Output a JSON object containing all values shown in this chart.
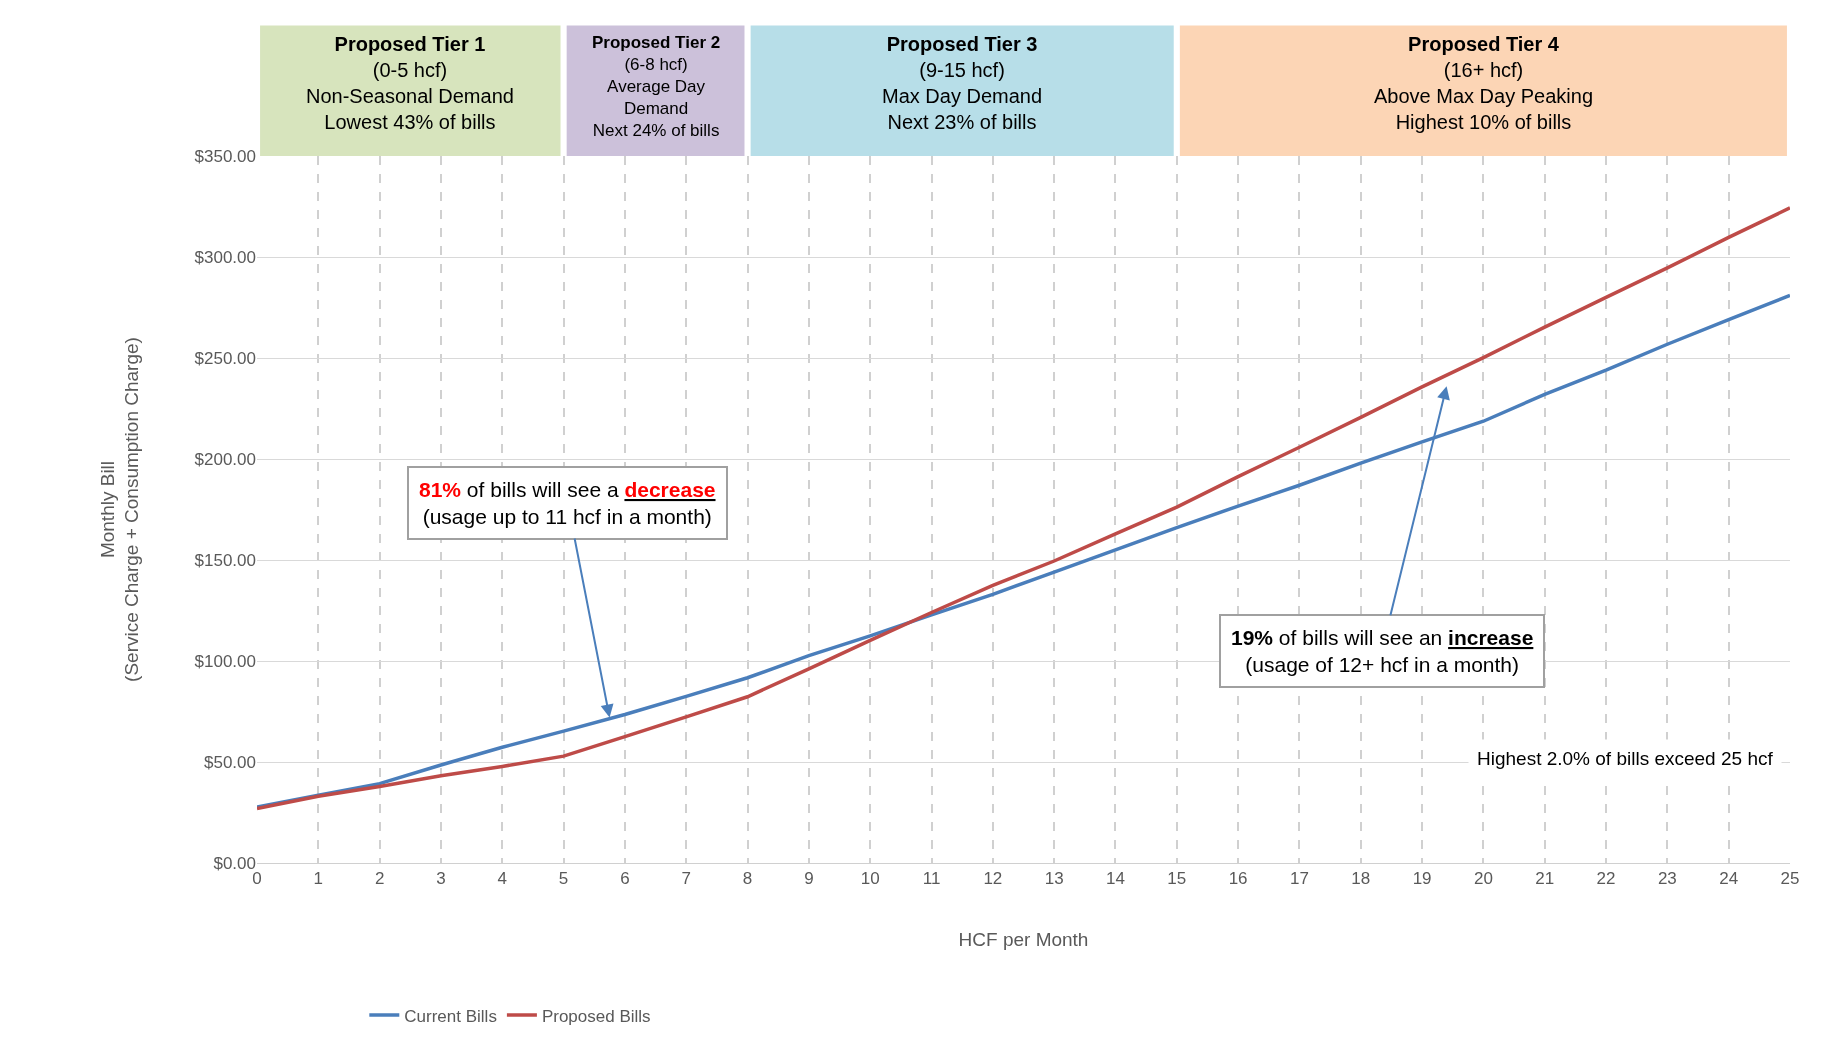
{
  "chart_data": {
    "type": "line",
    "xlabel": "HCF per Month",
    "ylabel": "Monthly Bill\n(Service Charge + Consumption Charge)",
    "x": [
      0,
      1,
      2,
      3,
      4,
      5,
      6,
      7,
      8,
      9,
      10,
      11,
      12,
      13,
      14,
      15,
      16,
      17,
      18,
      19,
      20,
      21,
      22,
      23,
      24,
      25
    ],
    "series": [
      {
        "name": "Current Bills",
        "color": "#4a7ebb",
        "values": [
          27.7,
          33.5,
          39.3,
          48.5,
          57.3,
          65.3,
          73.5,
          82.5,
          91.7,
          102.7,
          112.4,
          122.8,
          133,
          144,
          155,
          166,
          176.7,
          187,
          198,
          208.5,
          218.7,
          232,
          244,
          256.8,
          269,
          281
        ]
      },
      {
        "name": "Proposed Bills",
        "color": "#be4b48",
        "values": [
          27,
          33,
          37.9,
          43.2,
          47.8,
          52.9,
          62.6,
          72.3,
          82.3,
          96.1,
          110.2,
          124,
          137.4,
          149.5,
          162.9,
          176.2,
          191.3,
          205.8,
          220.6,
          235.7,
          250.2,
          265.3,
          280,
          294.6,
          309.7,
          324.3
        ]
      }
    ],
    "xlim": [
      0,
      25
    ],
    "xticks": [
      0,
      1,
      2,
      3,
      4,
      5,
      6,
      7,
      8,
      9,
      10,
      11,
      12,
      13,
      14,
      15,
      16,
      17,
      18,
      19,
      20,
      21,
      22,
      23,
      24,
      25
    ],
    "ylim": [
      0,
      350
    ],
    "yticks": [
      {
        "value": 0,
        "label": "$0.00"
      },
      {
        "value": 50,
        "label": "$50.00"
      },
      {
        "value": 100,
        "label": "$100.00"
      },
      {
        "value": 150,
        "label": "$150.00"
      },
      {
        "value": 200,
        "label": "$200.00"
      },
      {
        "value": 250,
        "label": "$250.00"
      },
      {
        "value": 300,
        "label": "$300.00"
      },
      {
        "value": 350,
        "label": "$350.00"
      }
    ],
    "annotations": [
      "Proposed Tier 1\n(0-5 hcf)\nNon-Seasonal Demand\nLowest 43% of bills",
      "Proposed Tier 2\n(6-8 hcf)\nAverage Day\nDemand\nNext 24% of bills",
      "Proposed Tier 3\n(9-15 hcf)\nMax Day Demand\nNext 23% of bills",
      "Proposed Tier 4\n(16+ hcf)\nAbove Max Day Peaking\nHighest 10% of bills",
      {
        "text": "81% of bills will see a decrease\n(usage up to 11 hcf in a month)",
        "x": 5.75,
        "y": 72
      },
      "19% of bills will see an increase\n(usage of 12+ hcf in a month)",
      "Highest 2.0% of bills exceed 25 hcf"
    ],
    "grid": true,
    "legend": "bottom left",
    "marker": "none",
    "line_style": "solid"
  }
}
